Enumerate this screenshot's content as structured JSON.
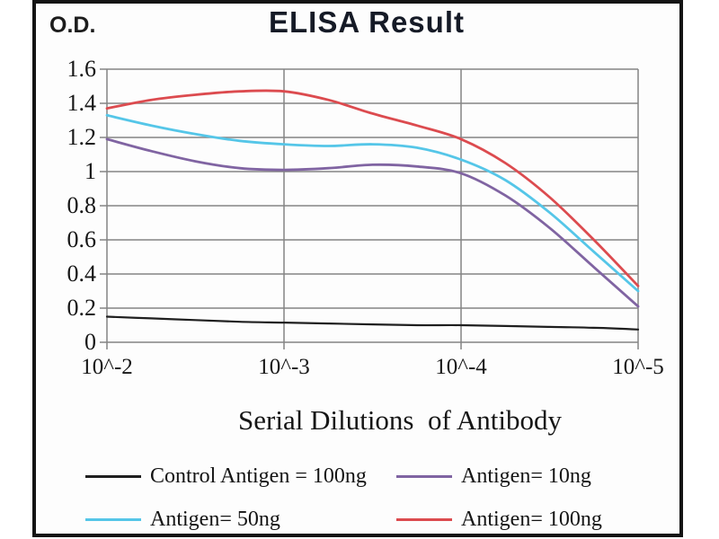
{
  "header": {
    "title": "ELISA Result",
    "y_axis_unit": "O.D."
  },
  "x_axis": {
    "label": "Serial Dilutions  of Antibody",
    "ticks": [
      "10^-2",
      "10^-3",
      "10^-4",
      "10^-5"
    ]
  },
  "y_axis": {
    "ticks": [
      "1.6",
      "1.4",
      "1.2",
      "1",
      "0.8",
      "0.6",
      "0.4",
      "0.2",
      "0"
    ]
  },
  "legend": {
    "items": [
      {
        "label": "Control Antigen = 100ng",
        "color": "#1f1f1f"
      },
      {
        "label": "Antigen= 10ng",
        "color": "#8064a2"
      },
      {
        "label": "Antigen= 50ng",
        "color": "#55c6e8"
      },
      {
        "label": "Antigen= 100ng",
        "color": "#dc4b4f"
      }
    ]
  },
  "colors": {
    "grid": "#848484",
    "frame_border": "#141414"
  },
  "chart_data": {
    "type": "line",
    "title": "ELISA Result",
    "xlabel": "Serial Dilutions of Antibody",
    "ylabel": "O.D.",
    "x_axis_note": "x is antibody dilution 10^-x, left 10^-2 to right 10^-5",
    "x_tick_values": [
      2,
      3,
      4,
      5
    ],
    "x_tick_labels": [
      "10^-2",
      "10^-3",
      "10^-4",
      "10^-5"
    ],
    "ylim": [
      0,
      1.6
    ],
    "y_tick_step": 0.2,
    "grid": true,
    "legend_position": "bottom",
    "x": [
      2,
      2.25,
      2.5,
      2.75,
      3,
      3.25,
      3.5,
      3.75,
      4,
      4.25,
      4.5,
      4.75,
      5
    ],
    "series": [
      {
        "name": "Control Antigen = 100ng",
        "color": "#1f1f1f",
        "width": 2.2,
        "values": [
          0.15,
          0.14,
          0.13,
          0.12,
          0.115,
          0.11,
          0.105,
          0.1,
          0.1,
          0.095,
          0.09,
          0.085,
          0.075
        ]
      },
      {
        "name": "Antigen= 10ng",
        "color": "#8064a2",
        "width": 2.8,
        "values": [
          1.19,
          1.12,
          1.06,
          1.02,
          1.01,
          1.02,
          1.04,
          1.03,
          0.99,
          0.86,
          0.67,
          0.44,
          0.21
        ]
      },
      {
        "name": "Antigen= 50ng",
        "color": "#55c6e8",
        "width": 2.8,
        "values": [
          1.33,
          1.27,
          1.22,
          1.18,
          1.16,
          1.15,
          1.16,
          1.14,
          1.07,
          0.95,
          0.76,
          0.53,
          0.3
        ]
      },
      {
        "name": "Antigen= 100ng",
        "color": "#dc4b4f",
        "width": 2.8,
        "values": [
          1.37,
          1.42,
          1.45,
          1.47,
          1.47,
          1.42,
          1.34,
          1.27,
          1.19,
          1.05,
          0.85,
          0.6,
          0.33
        ]
      }
    ]
  }
}
